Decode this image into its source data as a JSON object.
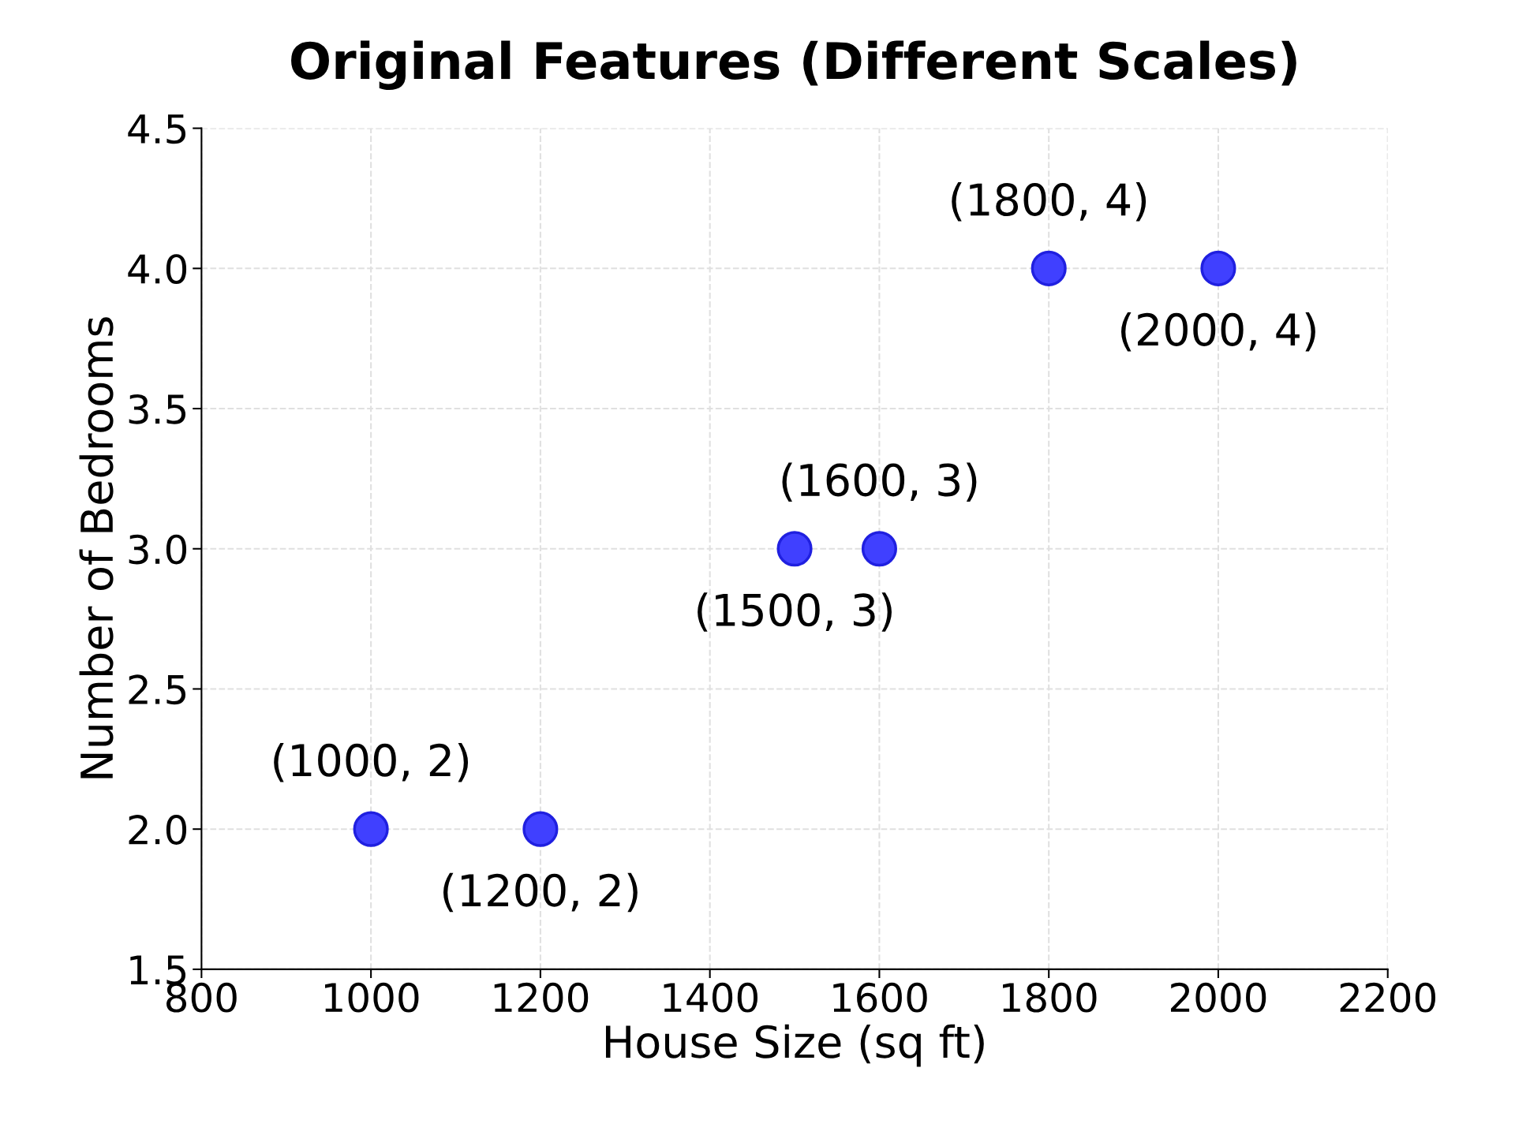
{
  "chart_data": {
    "type": "scatter",
    "title": "Original Features (Different Scales)",
    "xlabel": "House Size (sq ft)",
    "ylabel": "Number of Bedrooms",
    "series": [
      {
        "x": [
          1000,
          1200,
          1600,
          1500,
          1800,
          2000
        ],
        "values": [
          2,
          2,
          3,
          3,
          4,
          4
        ],
        "color": "#4040ff"
      }
    ],
    "annotations": [
      {
        "text": "(1000, 2)",
        "x": 1000,
        "y": 2
      },
      {
        "text": "(1200, 2)",
        "x": 1200,
        "y": 2
      },
      {
        "text": "(1600, 3)",
        "x": 1600,
        "y": 3
      },
      {
        "text": "(1500, 3)",
        "x": 1500,
        "y": 3
      },
      {
        "text": "(1800, 4)",
        "x": 1800,
        "y": 4
      },
      {
        "text": "(2000, 4)",
        "x": 2000,
        "y": 4
      }
    ],
    "xlim": [
      800,
      2200
    ],
    "xticks": [
      800,
      1000,
      1200,
      1400,
      1600,
      1800,
      2000,
      2200
    ],
    "ylim": [
      1.5,
      4.5
    ],
    "yticks": [
      1.5,
      {
        "value": 2,
        "label": "2.0"
      },
      2.5,
      {
        "value": 3,
        "label": "3.0"
      },
      3.5,
      {
        "value": 4,
        "label": "4.0"
      },
      4.5
    ],
    "grid": true,
    "marker": "circle",
    "legend": false
  }
}
